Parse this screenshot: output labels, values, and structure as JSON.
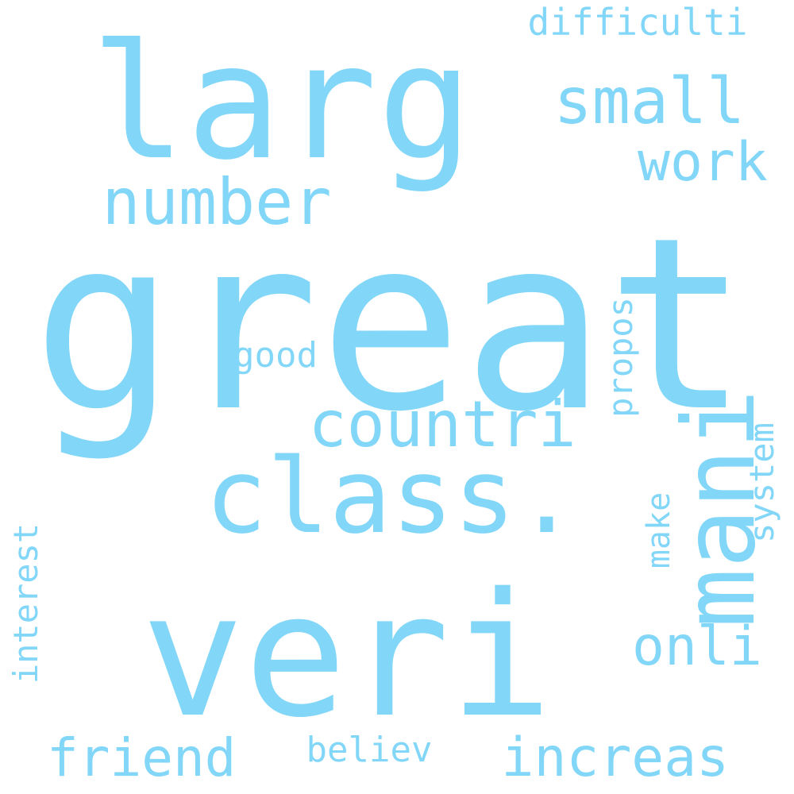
{
  "cloud": {
    "color": "#82d6f8",
    "words": [
      {
        "name": "word-great",
        "text": "great",
        "rotated": false
      },
      {
        "name": "word-larg",
        "text": "larg",
        "rotated": false
      },
      {
        "name": "word-veri",
        "text": "veri",
        "rotated": false
      },
      {
        "name": "word-class",
        "text": "class.",
        "rotated": false
      },
      {
        "name": "word-mani",
        "text": "mani",
        "rotated": true
      },
      {
        "name": "word-countri",
        "text": "countri",
        "rotated": false
      },
      {
        "name": "word-number",
        "text": "number",
        "rotated": false
      },
      {
        "name": "word-small",
        "text": "small",
        "rotated": false
      },
      {
        "name": "word-work",
        "text": "work",
        "rotated": false
      },
      {
        "name": "word-difficulti",
        "text": "difficulti",
        "rotated": false
      },
      {
        "name": "word-increas",
        "text": "increas",
        "rotated": false
      },
      {
        "name": "word-friend",
        "text": "friend",
        "rotated": false
      },
      {
        "name": "word-onli",
        "text": "onli",
        "rotated": false
      },
      {
        "name": "word-interest",
        "text": "interest",
        "rotated": true
      },
      {
        "name": "word-system",
        "text": "system",
        "rotated": true
      },
      {
        "name": "word-propos",
        "text": "propos",
        "rotated": true
      },
      {
        "name": "word-make",
        "text": "make",
        "rotated": true
      },
      {
        "name": "word-believ",
        "text": "believ",
        "rotated": false
      },
      {
        "name": "word-good",
        "text": "good",
        "rotated": false
      }
    ]
  }
}
